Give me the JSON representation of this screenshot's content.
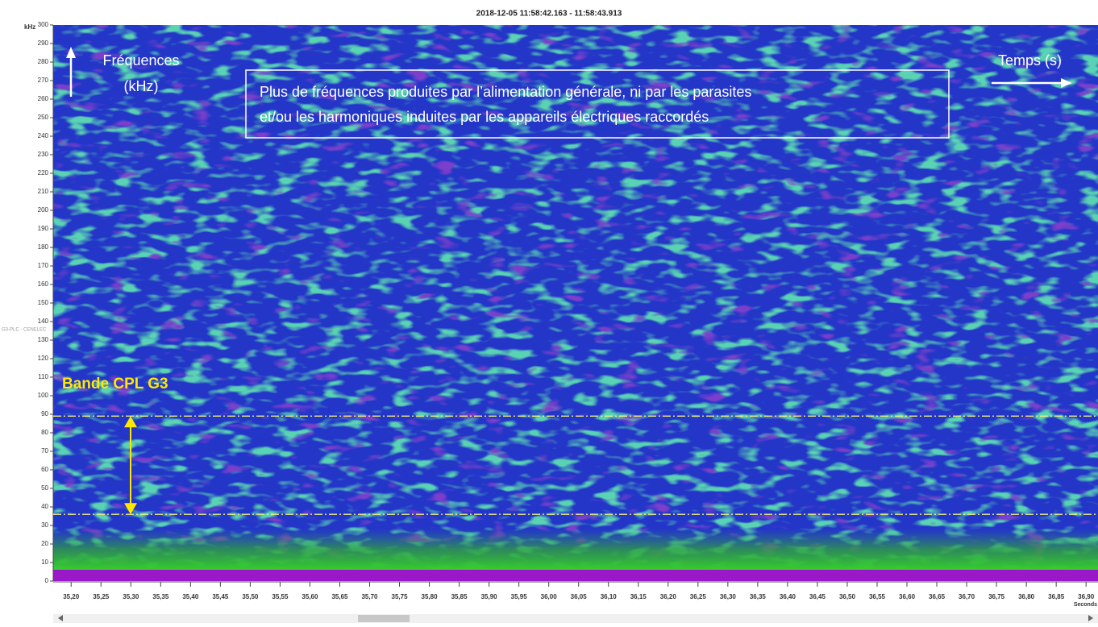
{
  "chart_data": {
    "type": "spectrogram",
    "title": "2018-12-05 11:58:42.163 - 11:58:43.913",
    "y_unit_label": "kHz",
    "x_unit_label": "Seconds",
    "channel_label": "G3-PLC - CENELEC",
    "ylim": [
      0,
      300
    ],
    "yticks": [
      0,
      10,
      20,
      30,
      40,
      50,
      60,
      70,
      80,
      90,
      100,
      110,
      120,
      130,
      140,
      150,
      160,
      170,
      180,
      190,
      200,
      210,
      220,
      230,
      240,
      250,
      260,
      270,
      280,
      290,
      300
    ],
    "xlim": [
      35.17,
      36.92
    ],
    "xticks": [
      {
        "value": 35.2,
        "label": "35,20"
      },
      {
        "value": 35.25,
        "label": "35,25"
      },
      {
        "value": 35.3,
        "label": "35,30"
      },
      {
        "value": 35.35,
        "label": "35,35"
      },
      {
        "value": 35.4,
        "label": "35,40"
      },
      {
        "value": 35.45,
        "label": "35,45"
      },
      {
        "value": 35.5,
        "label": "35,50"
      },
      {
        "value": 35.55,
        "label": "35,55"
      },
      {
        "value": 35.6,
        "label": "35,60"
      },
      {
        "value": 35.65,
        "label": "35,65"
      },
      {
        "value": 35.7,
        "label": "35,70"
      },
      {
        "value": 35.75,
        "label": "35,75"
      },
      {
        "value": 35.8,
        "label": "35,80"
      },
      {
        "value": 35.85,
        "label": "35,85"
      },
      {
        "value": 35.9,
        "label": "35,90"
      },
      {
        "value": 35.95,
        "label": "35,95"
      },
      {
        "value": 36.0,
        "label": "36,00"
      },
      {
        "value": 36.05,
        "label": "36,05"
      },
      {
        "value": 36.1,
        "label": "36,10"
      },
      {
        "value": 36.15,
        "label": "36,15"
      },
      {
        "value": 36.2,
        "label": "36,20"
      },
      {
        "value": 36.25,
        "label": "36,25"
      },
      {
        "value": 36.3,
        "label": "36,30"
      },
      {
        "value": 36.35,
        "label": "36,35"
      },
      {
        "value": 36.4,
        "label": "36,40"
      },
      {
        "value": 36.45,
        "label": "36,45"
      },
      {
        "value": 36.5,
        "label": "36,50"
      },
      {
        "value": 36.55,
        "label": "36,55"
      },
      {
        "value": 36.6,
        "label": "36,60"
      },
      {
        "value": 36.65,
        "label": "36,65"
      },
      {
        "value": 36.7,
        "label": "36,70"
      },
      {
        "value": 36.75,
        "label": "36,75"
      },
      {
        "value": 36.8,
        "label": "36,80"
      },
      {
        "value": 36.85,
        "label": "36,85"
      },
      {
        "value": 36.9,
        "label": "36,90"
      }
    ],
    "band_lines": [
      36,
      89
    ],
    "annotations": {
      "frequency_label": [
        "Fréquences",
        "(kHz)"
      ],
      "time_label": "Temps (s)",
      "note": [
        "Plus de fréquences produites par l’alimentation générale, ni par les parasites",
        "et/ou les harmoniques induites par les appareils électriques raccordés"
      ],
      "band_label": "Bande CPL G3"
    }
  }
}
